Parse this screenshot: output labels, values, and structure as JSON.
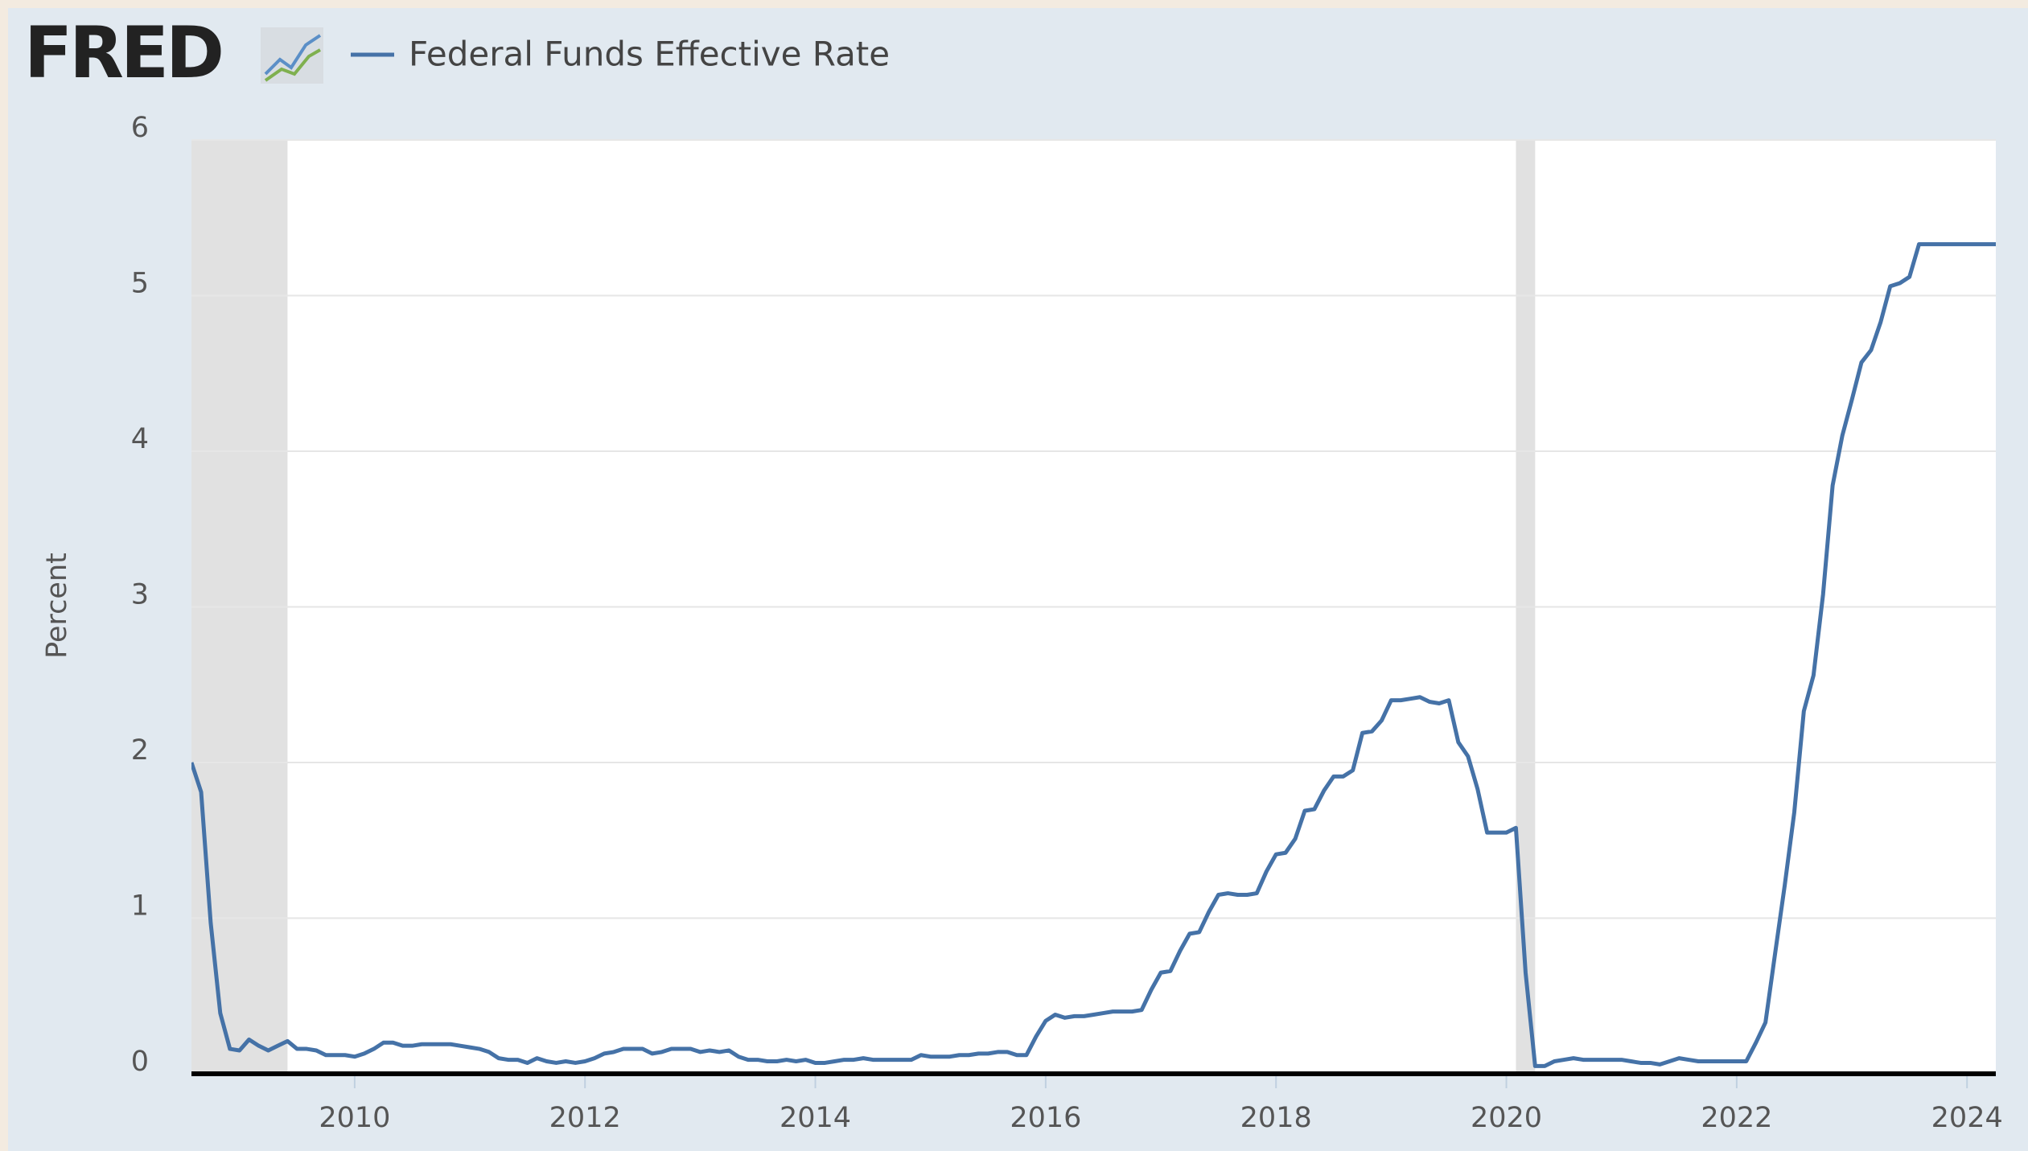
{
  "chart_data": {
    "type": "line",
    "logo": "FRED",
    "ylabel": "Percent",
    "x": [
      2008.583,
      2008.667,
      2008.75,
      2008.833,
      2008.917,
      2009,
      2009.083,
      2009.167,
      2009.25,
      2009.333,
      2009.417,
      2009.5,
      2009.583,
      2009.667,
      2009.75,
      2009.833,
      2009.917,
      2010,
      2010.083,
      2010.167,
      2010.25,
      2010.333,
      2010.417,
      2010.5,
      2010.583,
      2010.667,
      2010.75,
      2010.833,
      2010.917,
      2011,
      2011.083,
      2011.167,
      2011.25,
      2011.333,
      2011.417,
      2011.5,
      2011.583,
      2011.667,
      2011.75,
      2011.833,
      2011.917,
      2012,
      2012.083,
      2012.167,
      2012.25,
      2012.333,
      2012.417,
      2012.5,
      2012.583,
      2012.667,
      2012.75,
      2012.833,
      2012.917,
      2013,
      2013.083,
      2013.167,
      2013.25,
      2013.333,
      2013.417,
      2013.5,
      2013.583,
      2013.667,
      2013.75,
      2013.833,
      2013.917,
      2014,
      2014.083,
      2014.167,
      2014.25,
      2014.333,
      2014.417,
      2014.5,
      2014.583,
      2014.667,
      2014.75,
      2014.833,
      2014.917,
      2015,
      2015.083,
      2015.167,
      2015.25,
      2015.333,
      2015.417,
      2015.5,
      2015.583,
      2015.667,
      2015.75,
      2015.833,
      2015.917,
      2016,
      2016.083,
      2016.167,
      2016.25,
      2016.333,
      2016.417,
      2016.5,
      2016.583,
      2016.667,
      2016.75,
      2016.833,
      2016.917,
      2017,
      2017.083,
      2017.167,
      2017.25,
      2017.333,
      2017.417,
      2017.5,
      2017.583,
      2017.667,
      2017.75,
      2017.833,
      2017.917,
      2018,
      2018.083,
      2018.167,
      2018.25,
      2018.333,
      2018.417,
      2018.5,
      2018.583,
      2018.667,
      2018.75,
      2018.833,
      2018.917,
      2019,
      2019.083,
      2019.167,
      2019.25,
      2019.333,
      2019.417,
      2019.5,
      2019.583,
      2019.667,
      2019.75,
      2019.833,
      2019.917,
      2020,
      2020.083,
      2020.167,
      2020.25,
      2020.333,
      2020.417,
      2020.5,
      2020.583,
      2020.667,
      2020.75,
      2020.833,
      2020.917,
      2021,
      2021.083,
      2021.167,
      2021.25,
      2021.333,
      2021.417,
      2021.5,
      2021.583,
      2021.667,
      2021.75,
      2021.833,
      2021.917,
      2022,
      2022.083,
      2022.167,
      2022.25,
      2022.333,
      2022.417,
      2022.5,
      2022.583,
      2022.667,
      2022.75,
      2022.833,
      2022.917,
      2023,
      2023.083,
      2023.167,
      2023.25,
      2023.333,
      2023.417,
      2023.5,
      2023.583,
      2023.667,
      2023.75,
      2023.833,
      2023.917,
      2024,
      2024.083,
      2024.167,
      2024.25
    ],
    "series": [
      {
        "name": "Federal Funds Effective Rate",
        "color": "#4572a7",
        "values": [
          2.0,
          1.81,
          0.97,
          0.39,
          0.16,
          0.15,
          0.22,
          0.18,
          0.15,
          0.18,
          0.21,
          0.16,
          0.16,
          0.15,
          0.12,
          0.12,
          0.12,
          0.11,
          0.13,
          0.16,
          0.2,
          0.2,
          0.18,
          0.18,
          0.19,
          0.19,
          0.19,
          0.19,
          0.18,
          0.17,
          0.16,
          0.14,
          0.1,
          0.09,
          0.09,
          0.07,
          0.1,
          0.08,
          0.07,
          0.08,
          0.07,
          0.08,
          0.1,
          0.13,
          0.14,
          0.16,
          0.16,
          0.16,
          0.13,
          0.14,
          0.16,
          0.16,
          0.16,
          0.14,
          0.15,
          0.14,
          0.15,
          0.11,
          0.09,
          0.09,
          0.08,
          0.08,
          0.09,
          0.08,
          0.09,
          0.07,
          0.07,
          0.08,
          0.09,
          0.09,
          0.1,
          0.09,
          0.09,
          0.09,
          0.09,
          0.09,
          0.12,
          0.11,
          0.11,
          0.11,
          0.12,
          0.12,
          0.13,
          0.13,
          0.14,
          0.14,
          0.12,
          0.12,
          0.24,
          0.34,
          0.38,
          0.36,
          0.37,
          0.37,
          0.38,
          0.39,
          0.4,
          0.4,
          0.4,
          0.41,
          0.54,
          0.65,
          0.66,
          0.79,
          0.9,
          0.91,
          1.04,
          1.15,
          1.16,
          1.15,
          1.15,
          1.16,
          1.3,
          1.41,
          1.42,
          1.51,
          1.69,
          1.7,
          1.82,
          1.91,
          1.91,
          1.95,
          2.19,
          2.2,
          2.27,
          2.4,
          2.4,
          2.41,
          2.42,
          2.39,
          2.38,
          2.4,
          2.13,
          2.04,
          1.83,
          1.55,
          1.55,
          1.55,
          1.58,
          0.65,
          0.05,
          0.05,
          0.08,
          0.09,
          0.1,
          0.09,
          0.09,
          0.09,
          0.09,
          0.09,
          0.08,
          0.07,
          0.07,
          0.06,
          0.08,
          0.1,
          0.09,
          0.08,
          0.08,
          0.08,
          0.08,
          0.08,
          0.08,
          0.2,
          0.33,
          0.77,
          1.21,
          1.68,
          2.33,
          2.56,
          3.08,
          3.78,
          4.1,
          4.33,
          4.57,
          4.65,
          4.83,
          5.06,
          5.08,
          5.12,
          5.33,
          5.33,
          5.33,
          5.33,
          5.33,
          5.33,
          5.33,
          5.33,
          5.33
        ]
      }
    ],
    "recessions": [
      [
        2007.917,
        2009.417
      ],
      [
        2020.083,
        2020.25
      ]
    ],
    "xlim": [
      2008.583,
      2024.25
    ],
    "xticks": [
      2010,
      2012,
      2014,
      2016,
      2018,
      2020,
      2022,
      2024
    ],
    "ylim": [
      0,
      6
    ],
    "yticks": [
      0,
      1,
      2,
      3,
      4,
      5,
      6
    ],
    "grid": true
  }
}
